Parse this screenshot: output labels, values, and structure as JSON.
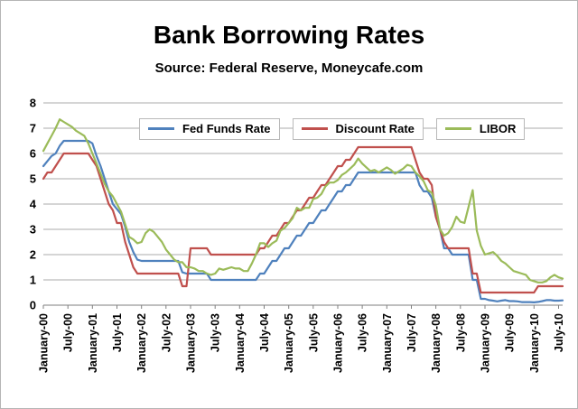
{
  "chart_data": {
    "type": "line",
    "title": "Bank Borrowing Rates",
    "subtitle": "Source: Federal Reserve, Moneycafe.com",
    "x_unit": "month",
    "x_start_label": "January-00",
    "x_end_label": "July-10",
    "x_tick_every": 6,
    "x_tick_labels": [
      "January-00",
      "July-00",
      "January-01",
      "July-01",
      "January-02",
      "July-02",
      "January-03",
      "July-03",
      "January-04",
      "July-04",
      "January-05",
      "July-05",
      "January-06",
      "July-06",
      "January-07",
      "July-07",
      "January-08",
      "July-08",
      "January-09",
      "July-09",
      "January-10",
      "July-10"
    ],
    "ylim": [
      0,
      8
    ],
    "y_ticks": [
      0,
      1,
      2,
      3,
      4,
      5,
      6,
      7,
      8
    ],
    "grid": "horizontal",
    "legend_position": "top-inside",
    "series": [
      {
        "name": "Fed Funds Rate",
        "color": "#4F81BD",
        "values": [
          5.5,
          5.7,
          5.9,
          6.0,
          6.3,
          6.5,
          6.5,
          6.5,
          6.5,
          6.5,
          6.5,
          6.5,
          6.4,
          5.9,
          5.5,
          5.0,
          4.5,
          4.0,
          3.8,
          3.6,
          3.1,
          2.5,
          2.1,
          1.8,
          1.75,
          1.75,
          1.75,
          1.75,
          1.75,
          1.75,
          1.75,
          1.75,
          1.75,
          1.75,
          1.3,
          1.25,
          1.25,
          1.25,
          1.25,
          1.25,
          1.25,
          1.0,
          1.0,
          1.0,
          1.0,
          1.0,
          1.0,
          1.0,
          1.0,
          1.0,
          1.0,
          1.0,
          1.0,
          1.25,
          1.25,
          1.5,
          1.75,
          1.75,
          2.0,
          2.25,
          2.25,
          2.5,
          2.75,
          2.75,
          3.0,
          3.25,
          3.25,
          3.5,
          3.75,
          3.75,
          4.0,
          4.25,
          4.5,
          4.5,
          4.75,
          4.75,
          5.0,
          5.25,
          5.25,
          5.25,
          5.25,
          5.25,
          5.25,
          5.25,
          5.25,
          5.25,
          5.25,
          5.25,
          5.25,
          5.25,
          5.25,
          5.25,
          4.75,
          4.5,
          4.5,
          4.25,
          3.5,
          3.0,
          2.25,
          2.25,
          2.0,
          2.0,
          2.0,
          2.0,
          2.0,
          1.0,
          1.0,
          0.25,
          0.25,
          0.2,
          0.18,
          0.15,
          0.18,
          0.2,
          0.16,
          0.16,
          0.15,
          0.12,
          0.12,
          0.12,
          0.11,
          0.13,
          0.16,
          0.2,
          0.2,
          0.18,
          0.18,
          0.19
        ]
      },
      {
        "name": "Discount Rate",
        "color": "#C0504D",
        "values": [
          5.0,
          5.25,
          5.25,
          5.5,
          5.75,
          6.0,
          6.0,
          6.0,
          6.0,
          6.0,
          6.0,
          6.0,
          5.75,
          5.5,
          5.0,
          4.5,
          4.0,
          3.75,
          3.25,
          3.25,
          2.5,
          2.0,
          1.5,
          1.25,
          1.25,
          1.25,
          1.25,
          1.25,
          1.25,
          1.25,
          1.25,
          1.25,
          1.25,
          1.25,
          0.75,
          0.75,
          2.25,
          2.25,
          2.25,
          2.25,
          2.25,
          2.0,
          2.0,
          2.0,
          2.0,
          2.0,
          2.0,
          2.0,
          2.0,
          2.0,
          2.0,
          2.0,
          2.0,
          2.25,
          2.25,
          2.5,
          2.75,
          2.75,
          3.0,
          3.25,
          3.25,
          3.5,
          3.75,
          3.75,
          4.0,
          4.25,
          4.25,
          4.5,
          4.75,
          4.75,
          5.0,
          5.25,
          5.5,
          5.5,
          5.75,
          5.75,
          6.0,
          6.25,
          6.25,
          6.25,
          6.25,
          6.25,
          6.25,
          6.25,
          6.25,
          6.25,
          6.25,
          6.25,
          6.25,
          6.25,
          6.25,
          5.75,
          5.25,
          5.0,
          5.0,
          4.75,
          3.5,
          3.0,
          2.5,
          2.25,
          2.25,
          2.25,
          2.25,
          2.25,
          2.25,
          1.25,
          1.25,
          0.5,
          0.5,
          0.5,
          0.5,
          0.5,
          0.5,
          0.5,
          0.5,
          0.5,
          0.5,
          0.5,
          0.5,
          0.5,
          0.5,
          0.75,
          0.75,
          0.75,
          0.75,
          0.75,
          0.75,
          0.75
        ]
      },
      {
        "name": "LIBOR",
        "color": "#9BBB59",
        "values": [
          6.1,
          6.4,
          6.7,
          7.0,
          7.35,
          7.25,
          7.15,
          7.05,
          6.9,
          6.8,
          6.7,
          6.4,
          6.0,
          5.6,
          5.2,
          4.8,
          4.5,
          4.3,
          4.0,
          3.7,
          3.2,
          2.7,
          2.6,
          2.45,
          2.5,
          2.85,
          3.0,
          2.9,
          2.7,
          2.5,
          2.2,
          2.0,
          1.8,
          1.7,
          1.7,
          1.5,
          1.5,
          1.45,
          1.35,
          1.35,
          1.25,
          1.2,
          1.25,
          1.45,
          1.4,
          1.45,
          1.5,
          1.45,
          1.45,
          1.35,
          1.35,
          1.65,
          2.0,
          2.45,
          2.45,
          2.3,
          2.45,
          2.55,
          2.95,
          3.05,
          3.25,
          3.45,
          3.85,
          3.75,
          3.85,
          3.85,
          4.2,
          4.25,
          4.4,
          4.7,
          4.85,
          4.85,
          4.95,
          5.15,
          5.25,
          5.4,
          5.55,
          5.8,
          5.6,
          5.45,
          5.3,
          5.35,
          5.25,
          5.35,
          5.45,
          5.35,
          5.2,
          5.3,
          5.4,
          5.55,
          5.5,
          5.25,
          5.1,
          4.9,
          4.55,
          4.45,
          3.95,
          3.0,
          2.75,
          2.85,
          3.1,
          3.5,
          3.3,
          3.25,
          3.9,
          4.55,
          2.95,
          2.35,
          2.0,
          2.05,
          2.1,
          1.95,
          1.75,
          1.65,
          1.5,
          1.35,
          1.3,
          1.25,
          1.2,
          1.0,
          0.95,
          0.9,
          0.9,
          0.95,
          1.1,
          1.2,
          1.1,
          1.05
        ]
      }
    ]
  }
}
